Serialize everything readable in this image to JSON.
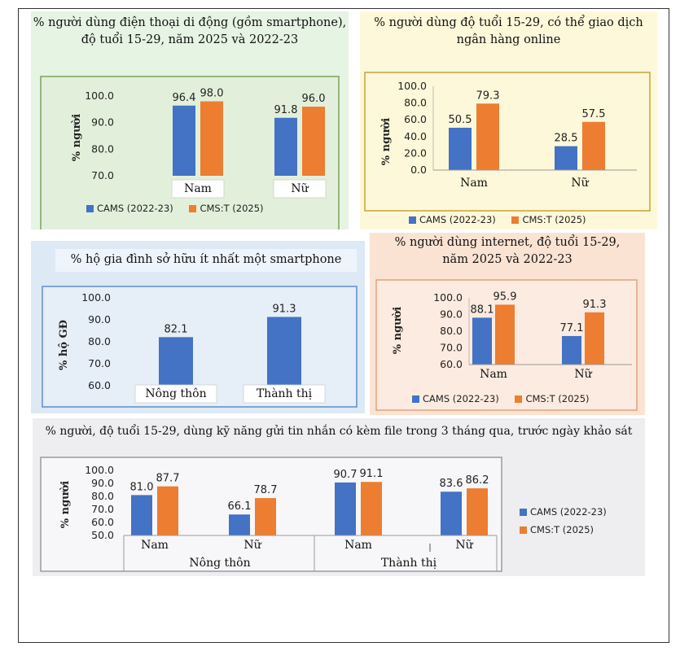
{
  "colors": {
    "cams": "#4472C4",
    "cmst": "#ED7D31"
  },
  "legend": {
    "cams": "CAMS (2022-23)",
    "cmst": "CMS:T (2025)"
  },
  "chart_data": [
    {
      "id": "c1",
      "type": "bar",
      "title_lines": [
        "% người dùng điện thoại di động (gồm smartphone),",
        "độ tuổi 15-29, năm 2025 và 2022-23"
      ],
      "ylabel": "% người",
      "ylim": [
        70,
        100
      ],
      "yticks": [
        "100.0",
        "90.0",
        "80.0",
        "70.0"
      ],
      "categories": [
        "Nam",
        "Nữ"
      ],
      "series": [
        {
          "name": "CAMS (2022-23)",
          "values": [
            96.4,
            91.8
          ],
          "labels": [
            "96.4",
            "91.8"
          ]
        },
        {
          "name": "CMS:T (2025)",
          "values": [
            98.0,
            96.0
          ],
          "labels": [
            "98.0",
            "96.0"
          ]
        }
      ]
    },
    {
      "id": "c2",
      "type": "bar",
      "title_lines": [
        "% người dùng độ tuổi 15-29, có thể giao dịch",
        "ngân hàng online"
      ],
      "ylabel": "% người",
      "ylim": [
        0,
        100
      ],
      "yticks": [
        "100.0",
        "80.0",
        "60.0",
        "40.0",
        "20.0",
        "0.0"
      ],
      "categories": [
        "Nam",
        "Nữ"
      ],
      "series": [
        {
          "name": "CAMS (2022-23)",
          "values": [
            50.5,
            28.5
          ],
          "labels": [
            "50.5",
            "28.5"
          ]
        },
        {
          "name": "CMS:T (2025)",
          "values": [
            79.3,
            57.5
          ],
          "labels": [
            "79.3",
            "57.5"
          ]
        }
      ]
    },
    {
      "id": "c3",
      "type": "bar",
      "title_lines": [
        "% hộ gia đình sở hữu ít nhất một smartphone"
      ],
      "ylabel": "% hộ GĐ",
      "ylim": [
        60,
        100
      ],
      "yticks": [
        "100.0",
        "90.0",
        "80.0",
        "70.0",
        "60.0"
      ],
      "categories": [
        "Nông thôn",
        "Thành thị"
      ],
      "series": [
        {
          "name": "",
          "values": [
            82.1,
            91.3
          ],
          "labels": [
            "82.1",
            "91.3"
          ]
        }
      ]
    },
    {
      "id": "c4",
      "type": "bar",
      "title_lines": [
        "% người dùng internet, độ tuổi 15-29,",
        "năm 2025 và 2022-23"
      ],
      "ylabel": "% người",
      "ylim": [
        60,
        100
      ],
      "yticks": [
        "100.0",
        "90.0",
        "80.0",
        "70.0",
        "60.0"
      ],
      "categories": [
        "Nam",
        "Nữ"
      ],
      "series": [
        {
          "name": "CAMS (2022-23)",
          "values": [
            88.1,
            77.1
          ],
          "labels": [
            "88.1",
            "77.1"
          ]
        },
        {
          "name": "CMS:T (2025)",
          "values": [
            95.9,
            91.3
          ],
          "labels": [
            "95.9",
            "91.3"
          ]
        }
      ]
    },
    {
      "id": "c5",
      "type": "bar",
      "title_lines": [
        "% người, độ tuổi 15-29, dùng kỹ năng gửi tin nhắn có kèm file trong 3 tháng qua, trước ngày khảo sát"
      ],
      "ylabel": "% người",
      "ylim": [
        50,
        100
      ],
      "yticks": [
        "100.0",
        "90.0",
        "80.0",
        "70.0",
        "60.0",
        "50.0"
      ],
      "categories": [
        "Nam",
        "Nữ",
        "Nam",
        "Nữ"
      ],
      "groups": [
        "Nông thôn",
        "Thành thị"
      ],
      "series": [
        {
          "name": "CAMS (2022-23)",
          "values": [
            81.0,
            66.1,
            90.7,
            83.6
          ],
          "labels": [
            "81.0",
            "66.1",
            "90.7",
            "83.6"
          ]
        },
        {
          "name": "CMS:T (2025)",
          "values": [
            87.7,
            78.7,
            91.1,
            86.2
          ],
          "labels": [
            "87.7",
            "78.7",
            "91.1",
            "86.2"
          ]
        }
      ]
    }
  ]
}
